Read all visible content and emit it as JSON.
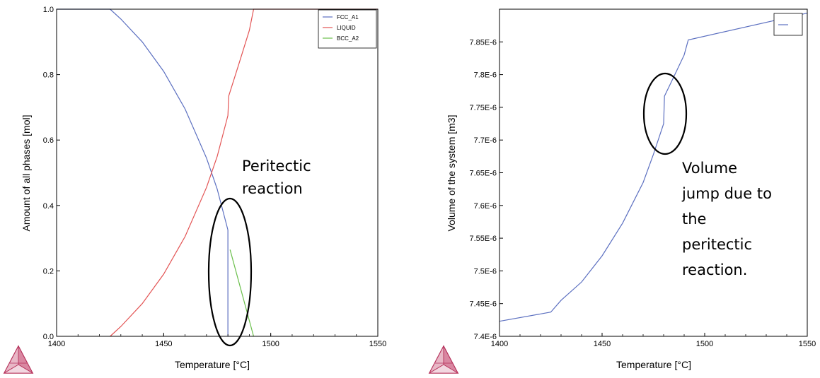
{
  "colors": {
    "fcc": "#5b6fc0",
    "liquid": "#e35454",
    "bcc": "#6abf4b",
    "volume": "#5b6fc0",
    "logo": "#b5305a"
  },
  "chart_data": [
    {
      "type": "line",
      "xlabel": "Temperature [°C]",
      "ylabel": "Amount of all phases [mol]",
      "xlim": [
        1400,
        1550
      ],
      "ylim": [
        0,
        1
      ],
      "xticks": [
        "1400",
        "1450",
        "1500",
        "1550"
      ],
      "yticks": [
        "0.0",
        "0.2",
        "0.4",
        "0.6",
        "0.8",
        "1.0"
      ],
      "legend_position": "top-right",
      "grid": false,
      "series": [
        {
          "name": "FCC_A1",
          "color_key": "fcc",
          "points": [
            [
              1400,
              1.0
            ],
            [
              1425,
              1.0
            ],
            [
              1430,
              0.97
            ],
            [
              1440,
              0.9
            ],
            [
              1450,
              0.81
            ],
            [
              1460,
              0.695
            ],
            [
              1470,
              0.545
            ],
            [
              1475,
              0.45
            ],
            [
              1480,
              0.325
            ],
            [
              1480,
              0.0
            ]
          ]
        },
        {
          "name": "LIQUID",
          "color_key": "liquid",
          "points": [
            [
              1425,
              0.0
            ],
            [
              1430,
              0.03
            ],
            [
              1440,
              0.1
            ],
            [
              1450,
              0.19
            ],
            [
              1460,
              0.305
            ],
            [
              1470,
              0.455
            ],
            [
              1475,
              0.55
            ],
            [
              1480,
              0.675
            ],
            [
              1480.4,
              0.735
            ],
            [
              1485,
              0.83
            ],
            [
              1490,
              0.935
            ],
            [
              1492,
              1.0
            ],
            [
              1550,
              1.0
            ]
          ]
        },
        {
          "name": "BCC_A2",
          "color_key": "bcc",
          "points": [
            [
              1481,
              0.265
            ],
            [
              1492,
              0.0
            ]
          ]
        }
      ],
      "annotation": {
        "lines": [
          "Peritectic",
          "reaction"
        ]
      }
    },
    {
      "type": "line",
      "xlabel": "Temperature [°C]",
      "ylabel": "Volume of the system [m3]",
      "xlim": [
        1400,
        1550
      ],
      "ylim": [
        7.4e-06,
        7.9e-06
      ],
      "xticks": [
        "1400",
        "1450",
        "1500",
        "1550"
      ],
      "yticks": [
        "7.4E-6",
        "7.45E-6",
        "7.5E-6",
        "7.55E-6",
        "7.6E-6",
        "7.65E-6",
        "7.7E-6",
        "7.75E-6",
        "7.8E-6",
        "7.85E-6"
      ],
      "legend_position": "top-right",
      "grid": false,
      "series": [
        {
          "color_key": "volume",
          "points": [
            [
              1400,
              7.423e-06
            ],
            [
              1425,
              7.437e-06
            ],
            [
              1430,
              7.455e-06
            ],
            [
              1440,
              7.483e-06
            ],
            [
              1450,
              7.523e-06
            ],
            [
              1460,
              7.573e-06
            ],
            [
              1470,
              7.635e-06
            ],
            [
              1475,
              7.678e-06
            ],
            [
              1480,
              7.725e-06
            ],
            [
              1480.4,
              7.767e-06
            ],
            [
              1485,
              7.797e-06
            ],
            [
              1490,
              7.83e-06
            ],
            [
              1492,
              7.853e-06
            ],
            [
              1550,
              7.894e-06
            ]
          ]
        }
      ],
      "annotation": {
        "lines": [
          "Volume",
          "jump due to",
          "the",
          "peritectic",
          "reaction."
        ]
      }
    }
  ]
}
